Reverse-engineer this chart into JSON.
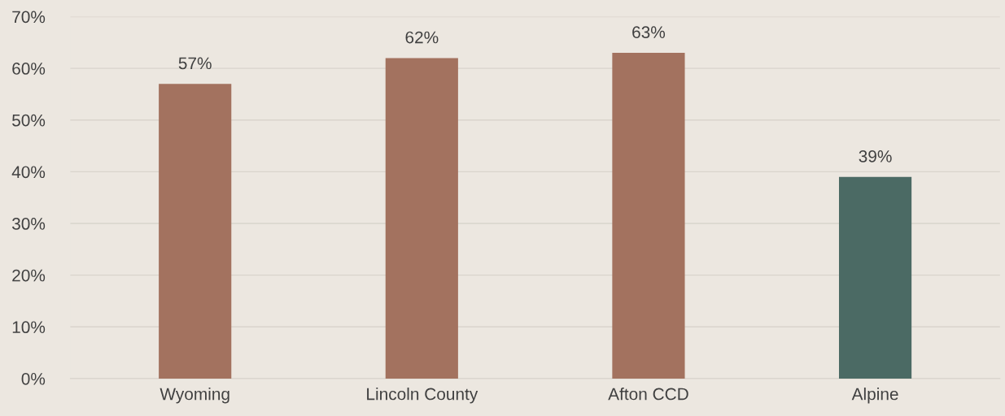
{
  "chart_data": {
    "type": "bar",
    "categories": [
      "Wyoming",
      "Lincoln County",
      "Afton CCD",
      "Alpine"
    ],
    "values": [
      57,
      62,
      63,
      39
    ],
    "colors": [
      "#a3725f",
      "#a3725f",
      "#a3725f",
      "#4b6a64"
    ],
    "value_labels": [
      "57%",
      "62%",
      "63%",
      "39%"
    ],
    "ylim": [
      0,
      70
    ],
    "yticks": [
      {
        "value": 0,
        "label": "0%"
      },
      {
        "value": 10,
        "label": "10%"
      },
      {
        "value": 20,
        "label": "20%"
      },
      {
        "value": 30,
        "label": "30%"
      },
      {
        "value": 40,
        "label": "40%"
      },
      {
        "value": 50,
        "label": "50%"
      },
      {
        "value": 60,
        "label": "60%"
      },
      {
        "value": 70,
        "label": "70%"
      }
    ],
    "grid": "y",
    "legend": false
  }
}
